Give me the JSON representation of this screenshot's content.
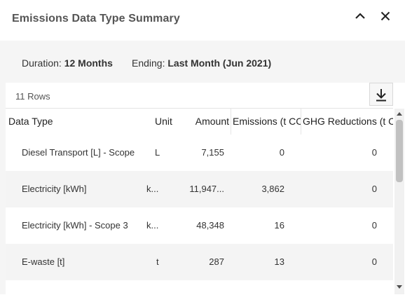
{
  "header": {
    "title": "Emissions Data Type Summary",
    "collapse_icon": "chevron-up-icon",
    "close_icon": "close-icon"
  },
  "filters": {
    "duration_label": "Duration:",
    "duration_value": "12 Months",
    "ending_label": "Ending:",
    "ending_value": "Last Month (Jun 2021)"
  },
  "table": {
    "row_count": "11 Rows",
    "download_icon": "download-icon",
    "columns": [
      "Data Type",
      "Unit",
      "Amount",
      "Emissions (t CC",
      "GHG Reductions (t C"
    ],
    "rows": [
      [
        "Diesel Transport [L] - Scope",
        "L",
        "7,155",
        "0",
        "0"
      ],
      [
        "Electricity [kWh]",
        "k...",
        "11,947...",
        "3,862",
        "0"
      ],
      [
        "Electricity [kWh] - Scope 3",
        "k...",
        "48,348",
        "16",
        "0"
      ],
      [
        "E-waste [t]",
        "t",
        "287",
        "13",
        "0"
      ]
    ]
  },
  "colors": {
    "title": "#555555",
    "panel_background": "#f5f5f5",
    "alt_row": "#f4f4f4"
  }
}
